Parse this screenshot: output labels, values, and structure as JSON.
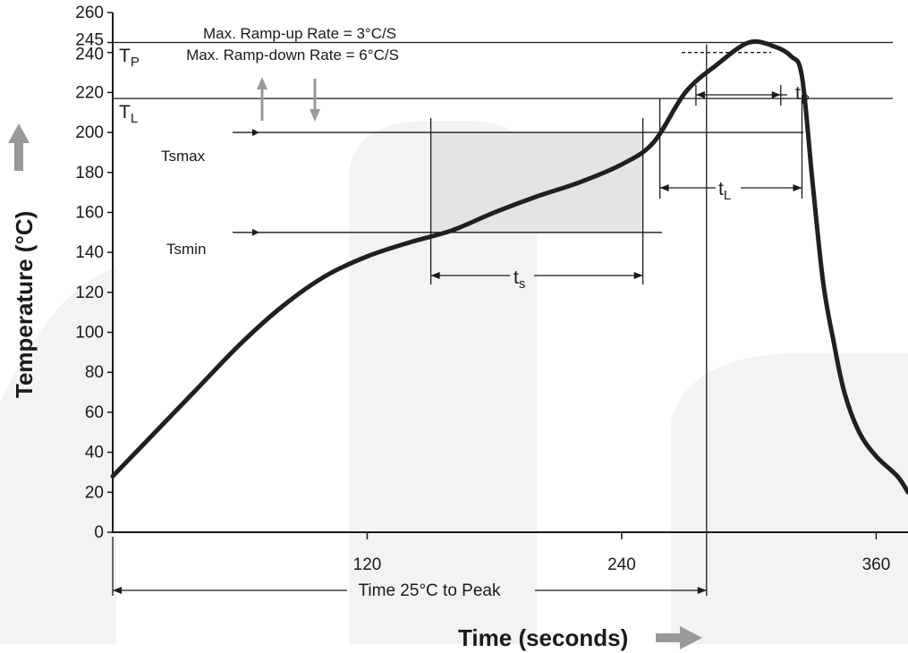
{
  "chart_data": {
    "type": "line",
    "title": "",
    "xlabel": "Time (seconds)",
    "ylabel": "Temperature (°C)",
    "xlim": [
      0,
      375
    ],
    "ylim": [
      0,
      260
    ],
    "x_ticks": [
      120,
      240,
      360
    ],
    "y_ticks": [
      0,
      20,
      40,
      60,
      80,
      100,
      120,
      140,
      160,
      180,
      200,
      220,
      240,
      245,
      260
    ],
    "grid": false,
    "series": [
      {
        "name": "",
        "points": [
          [
            0,
            28
          ],
          [
            20,
            50
          ],
          [
            40,
            72
          ],
          [
            60,
            94
          ],
          [
            80,
            113
          ],
          [
            100,
            128
          ],
          [
            120,
            138
          ],
          [
            140,
            145
          ],
          [
            160,
            151
          ],
          [
            180,
            160
          ],
          [
            200,
            168
          ],
          [
            220,
            175
          ],
          [
            240,
            184
          ],
          [
            255,
            195
          ],
          [
            270,
            220
          ],
          [
            285,
            234
          ],
          [
            300,
            245
          ],
          [
            312,
            243
          ],
          [
            320,
            238
          ],
          [
            325,
            228
          ],
          [
            330,
            175
          ],
          [
            335,
            125
          ],
          [
            340,
            95
          ],
          [
            345,
            70
          ],
          [
            352,
            50
          ],
          [
            360,
            38
          ],
          [
            370,
            28
          ],
          [
            375,
            20
          ]
        ]
      }
    ],
    "annotations": {
      "ramp_note_1": "Max. Ramp-up Rate = 3°C/S",
      "ramp_note_2": "Max. Ramp-down Rate = 6°C/S",
      "tp_main": "T",
      "tp_sub": "P",
      "tl_main": "T",
      "tl_sub": "L",
      "tsmax": "Tsmax",
      "tsmin": "Tsmin",
      "ts_main": "t",
      "ts_sub": "s",
      "tl_dur_main": "t",
      "tl_dur_sub": "L",
      "tp_dur_main": "t",
      "tp_dur_sub": "P",
      "time_to_peak": "Time 25°C to Peak"
    },
    "levels": {
      "tp": 245,
      "tl": 217,
      "tsmax": 200,
      "tsmin": 150,
      "tp_window": 240
    },
    "times": {
      "ts_start": 150,
      "ts_end": 250,
      "tl_start": 258,
      "tl_end": 325,
      "tp_start": 275,
      "tp_end": 315,
      "peak": 280
    },
    "colors": {
      "curve": "#231f20",
      "soak_fill": "#e4e4e5",
      "arrow_gray": "#999999",
      "text": "#1a1a1a"
    }
  }
}
